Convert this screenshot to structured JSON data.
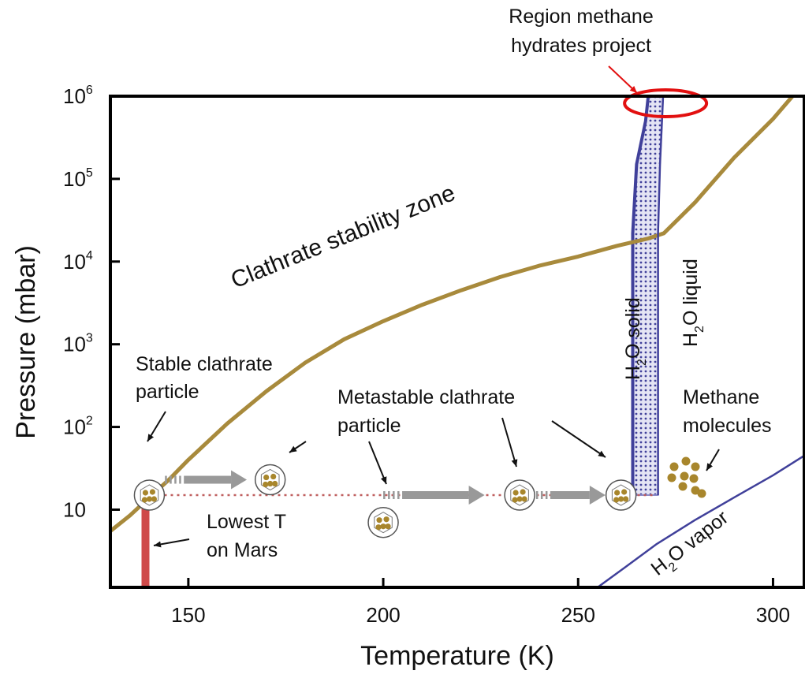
{
  "chart_data": {
    "type": "line",
    "xlabel": "Temperature (K)",
    "ylabel": "Pressure (mbar)",
    "xlim": [
      130,
      308
    ],
    "ylim": [
      1.15,
      1000000
    ],
    "y_scale": "log",
    "grid": false,
    "x_ticks": [
      150,
      200,
      250,
      300
    ],
    "y_ticks": [
      {
        "value": 10,
        "base": "10",
        "exp": ""
      },
      {
        "value": 100,
        "base": "10",
        "exp": "2"
      },
      {
        "value": 1000,
        "base": "10",
        "exp": "3"
      },
      {
        "value": 10000,
        "base": "10",
        "exp": "4"
      },
      {
        "value": 100000,
        "base": "10",
        "exp": "5"
      },
      {
        "value": 1000000,
        "base": "10",
        "exp": "6"
      }
    ],
    "colors": {
      "clathrate_curve": "#a88a3c",
      "water_lines": "#40409a",
      "ice_band": "#8c8cc8",
      "mars_bar": "#cf4a4a",
      "dotted_line": "#c06060",
      "highlight": "#e21010",
      "arrow": "#999999",
      "molecule": "#a8862c"
    },
    "series": [
      {
        "id": "clathrate-stability",
        "x": [
          130,
          135,
          140,
          145,
          150,
          160,
          170,
          180,
          190,
          200,
          210,
          220,
          230,
          240,
          250,
          260,
          268,
          272,
          280,
          290,
          300,
          305
        ],
        "y": [
          5.5,
          8.5,
          14,
          23,
          40,
          110,
          270,
          600,
          1150,
          1900,
          3000,
          4500,
          6500,
          8900,
          11500,
          15500,
          19000,
          22000,
          52000,
          180000,
          530000,
          1000000
        ]
      },
      {
        "id": "ice-liquid-boundary",
        "x": [
          270.5,
          270.5,
          271,
          271.5,
          271.8
        ],
        "y": [
          15,
          22000,
          150000,
          500000,
          1000000
        ]
      },
      {
        "id": "liquid-vapor-boundary",
        "x": [
          255,
          262,
          270,
          280,
          290,
          300,
          308
        ],
        "y": [
          1.15,
          2.0,
          3.8,
          7.5,
          14,
          26,
          45
        ]
      }
    ],
    "regions": {
      "ice_band_left_boundary": {
        "x": [
          264,
          264,
          265,
          267.3,
          268
        ],
        "y": [
          15,
          22000,
          150000,
          500000,
          1000000
        ]
      },
      "mars_lowest_t": {
        "x": 139,
        "y_top": 15
      },
      "dotted_pressure": 15,
      "project_region": {
        "x": 270,
        "y": 1000000
      }
    },
    "annotations": {
      "region_label_1": "Region methane",
      "region_label_2": "hydrates project",
      "stability_zone": "Clathrate stability zone",
      "stable_1": "Stable clathrate",
      "stable_2": "particle",
      "metastable_1": "Metastable clathrate",
      "metastable_2": "particle",
      "lowest_1": "Lowest T",
      "lowest_2": "on Mars",
      "methane_1": "Methane",
      "methane_2": "molecules",
      "h2o": "H",
      "h2o_sub": "2",
      "h2o_o": "O",
      "solid": " solid",
      "liquid": " liquid",
      "vapor": " vapor"
    },
    "particles": [
      {
        "x": 140,
        "y": 15,
        "kind": "stable"
      },
      {
        "x": 171,
        "y": 23,
        "kind": "metastable"
      },
      {
        "x": 200,
        "y": 7,
        "kind": "metastable"
      },
      {
        "x": 235,
        "y": 15,
        "kind": "metastable"
      },
      {
        "x": 261,
        "y": 15,
        "kind": "metastable"
      }
    ]
  }
}
